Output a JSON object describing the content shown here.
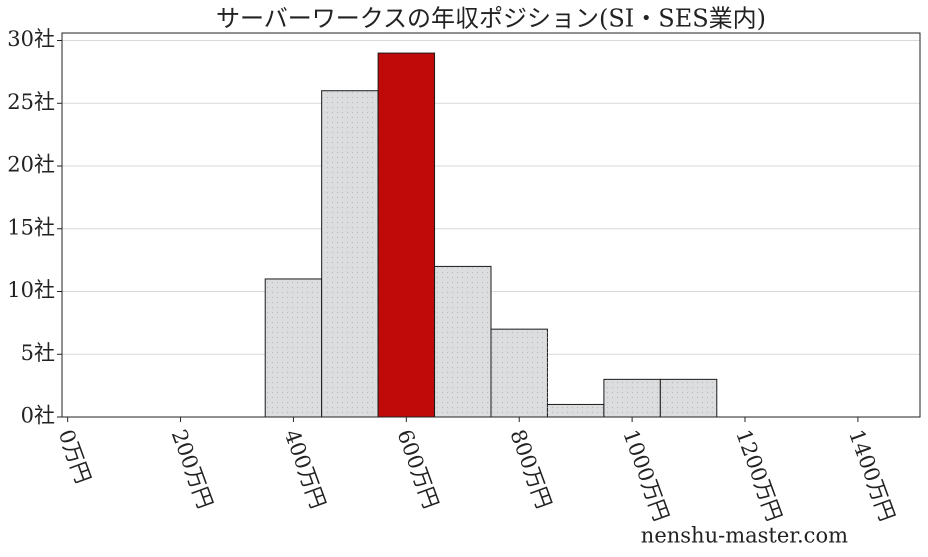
{
  "chart_data": {
    "type": "histogram",
    "title": "サーバーワークスの年収ポジション(SI・SES業内)",
    "bins": [
      350,
      450,
      550,
      650,
      750,
      850,
      950,
      1050,
      1150
    ],
    "counts": [
      11,
      26,
      29,
      12,
      7,
      1,
      3,
      3
    ],
    "bar_colors": [
      "#dcdddf",
      "#dcdddf",
      "#c00a0a",
      "#dcdddf",
      "#dcdddf",
      "#dcdddf",
      "#dcdddf",
      "#dcdddf"
    ],
    "edge_color": "#1a1a1a",
    "xlim": [
      -10,
      1510
    ],
    "ylim": [
      0,
      30.6
    ],
    "xticks": [
      {
        "value": 0,
        "label": "0万円"
      },
      {
        "value": 200,
        "label": "200万円"
      },
      {
        "value": 400,
        "label": "400万円"
      },
      {
        "value": 600,
        "label": "600万円"
      },
      {
        "value": 800,
        "label": "800万円"
      },
      {
        "value": 1000,
        "label": "1000万円"
      },
      {
        "value": 1200,
        "label": "1200万円"
      },
      {
        "value": 1400,
        "label": "1400万円"
      }
    ],
    "yticks": [
      {
        "value": 0,
        "label": "0社"
      },
      {
        "value": 5,
        "label": "5社"
      },
      {
        "value": 10,
        "label": "10社"
      },
      {
        "value": 15,
        "label": "15社"
      },
      {
        "value": 20,
        "label": "20社"
      },
      {
        "value": 25,
        "label": "25社"
      },
      {
        "value": 30,
        "label": "30社"
      }
    ],
    "grid": true,
    "watermark": "nenshu-master.com"
  }
}
